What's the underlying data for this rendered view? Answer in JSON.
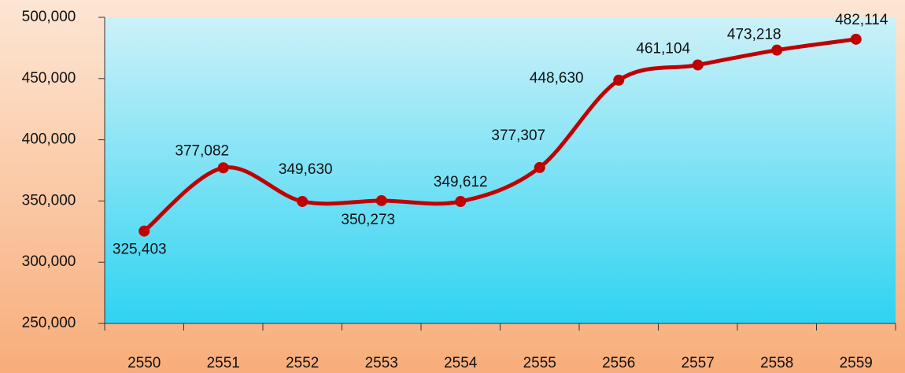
{
  "chart_data": {
    "type": "line",
    "categories": [
      "2550",
      "2551",
      "2552",
      "2553",
      "2554",
      "2555",
      "2556",
      "2557",
      "2558",
      "2559"
    ],
    "series": [
      {
        "color": "#c00000",
        "values": [
          325403,
          377082,
          349630,
          350273,
          349612,
          377307,
          448630,
          461104,
          473218,
          482114
        ],
        "value_labels": [
          "325,403",
          "377,082",
          "349,630",
          "350,273",
          "349,612",
          "377,307",
          "448,630",
          "461,104",
          "473,218",
          "482,114"
        ]
      }
    ],
    "ylim": [
      250000,
      500000
    ],
    "yticks": [
      {
        "value": 250000,
        "label": "250,000"
      },
      {
        "value": 300000,
        "label": "300,000"
      },
      {
        "value": 350000,
        "label": "350,000"
      },
      {
        "value": 400000,
        "label": "400,000"
      },
      {
        "value": 450000,
        "label": "450,000"
      },
      {
        "value": 500000,
        "label": "500,000"
      }
    ]
  }
}
